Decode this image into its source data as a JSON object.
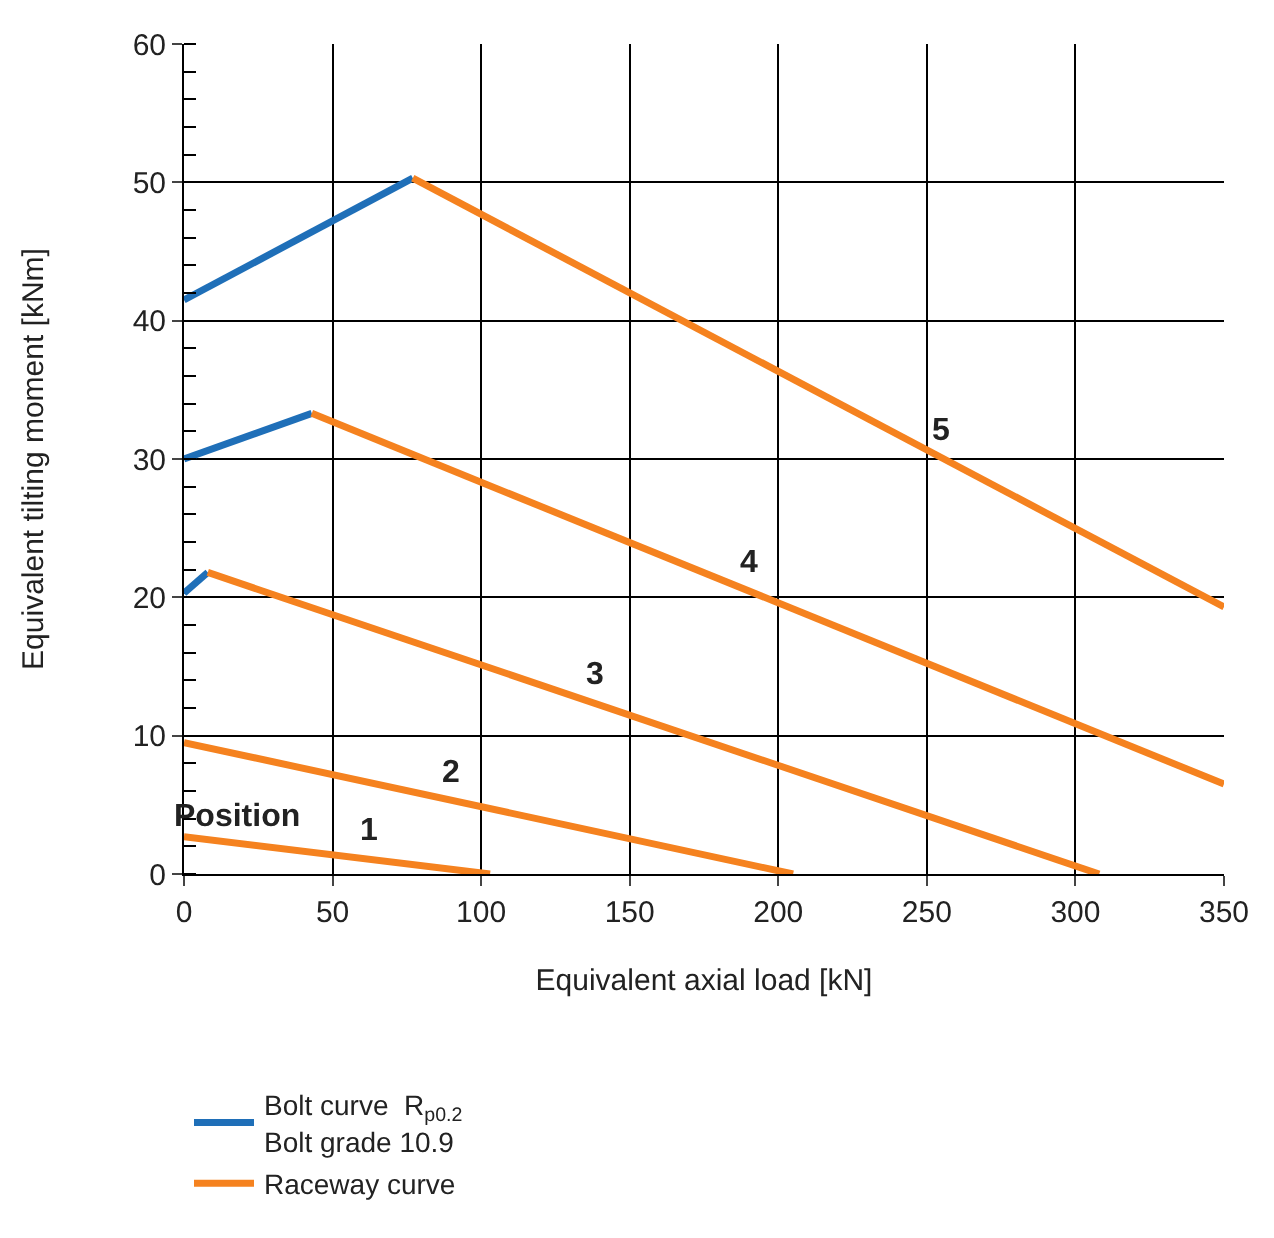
{
  "chart_data": {
    "type": "line",
    "xlabel": "Equivalent axial load [kN]",
    "ylabel": "Equivalent tilting moment [kNm]",
    "xlim": [
      0,
      350
    ],
    "xticks": [
      0,
      50,
      100,
      150,
      200,
      250,
      300,
      350
    ],
    "ylim": [
      0,
      60
    ],
    "yticks": [
      0,
      10,
      20,
      30,
      40,
      50,
      60
    ],
    "grid": true,
    "legend": "bottom",
    "marker": "none",
    "line_style": "solid",
    "series": [
      {
        "name": "Bolt curve  R$_{p0.2}$\nBolt grade 10.9",
        "color": "#1f6fb8",
        "x": [
          0,
          77,
          null,
          0,
          43,
          null,
          0,
          8
        ],
        "values": [
          41.5,
          50.3,
          null,
          30,
          33.3,
          null,
          20.3,
          21.8
        ]
      },
      {
        "name": "Raceway curve",
        "color": "#f5821f",
        "x": [
          77,
          350,
          null,
          43,
          350,
          null,
          8,
          308,
          null,
          0,
          205,
          null,
          0,
          103
        ],
        "values": [
          50.3,
          19.3,
          null,
          33.3,
          6.5,
          null,
          21.8,
          0,
          null,
          9.5,
          0,
          null,
          2.7,
          0
        ]
      }
    ],
    "annotations": [
      {
        "text": "Position",
        "x": 18,
        "y": 2.2
      },
      {
        "text": "1",
        "x": 62,
        "y": 1.1
      },
      {
        "text": "2",
        "x": 90,
        "y": 5.3
      },
      {
        "text": "3",
        "x": 138,
        "y": 12.4
      },
      {
        "text": "4",
        "x": 190,
        "y": 20.5
      },
      {
        "text": "5",
        "x": 255,
        "y": 30.1
      }
    ]
  }
}
